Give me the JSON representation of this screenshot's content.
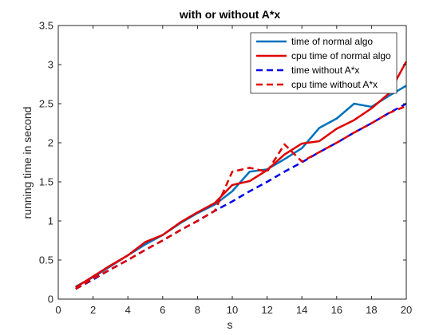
{
  "chart_data": {
    "type": "line",
    "title": "with or without A*x",
    "xlabel": "s",
    "ylabel": "running time in second",
    "xlim": [
      0,
      20
    ],
    "ylim": [
      0,
      3.5
    ],
    "xticks": [
      "0",
      "2",
      "4",
      "6",
      "8",
      "10",
      "12",
      "14",
      "16",
      "18",
      "20"
    ],
    "yticks": [
      "0",
      "0.5",
      "1",
      "1.5",
      "2",
      "2.5",
      "3",
      "3.5"
    ],
    "grid": false,
    "legend_position": "top-right",
    "x": [
      1,
      2,
      3,
      4,
      5,
      6,
      7,
      8,
      9,
      10,
      11,
      12,
      13,
      14,
      15,
      16,
      17,
      18,
      19,
      20
    ],
    "series": [
      {
        "name": "time of normal algo",
        "color": "#0072BD",
        "style": "solid",
        "values": [
          0.16,
          0.28,
          0.42,
          0.56,
          0.7,
          0.82,
          0.97,
          1.1,
          1.21,
          1.38,
          1.63,
          1.66,
          1.79,
          1.93,
          2.19,
          2.31,
          2.5,
          2.46,
          2.6,
          2.73
        ]
      },
      {
        "name": "cpu time of normal algo",
        "color": "#E00000",
        "style": "solid",
        "values": [
          0.15,
          0.29,
          0.43,
          0.56,
          0.73,
          0.82,
          0.98,
          1.11,
          1.23,
          1.46,
          1.51,
          1.65,
          1.85,
          1.99,
          2.02,
          2.18,
          2.29,
          2.44,
          2.63,
          3.04
        ]
      },
      {
        "name": "time without A*x",
        "color": "#0000E6",
        "style": "dashed",
        "values": [
          0.13,
          0.25,
          0.38,
          0.5,
          0.63,
          0.75,
          0.88,
          1.0,
          1.13,
          1.25,
          1.38,
          1.5,
          1.63,
          1.75,
          1.88,
          2.0,
          2.13,
          2.25,
          2.38,
          2.5
        ]
      },
      {
        "name": "cpu time without A*x",
        "color": "#E00000",
        "style": "dashed",
        "values": [
          0.13,
          0.26,
          0.38,
          0.5,
          0.63,
          0.75,
          0.88,
          1.0,
          1.13,
          1.63,
          1.68,
          1.63,
          1.98,
          1.76,
          1.88,
          2.0,
          2.13,
          2.25,
          2.38,
          2.47
        ]
      }
    ]
  }
}
